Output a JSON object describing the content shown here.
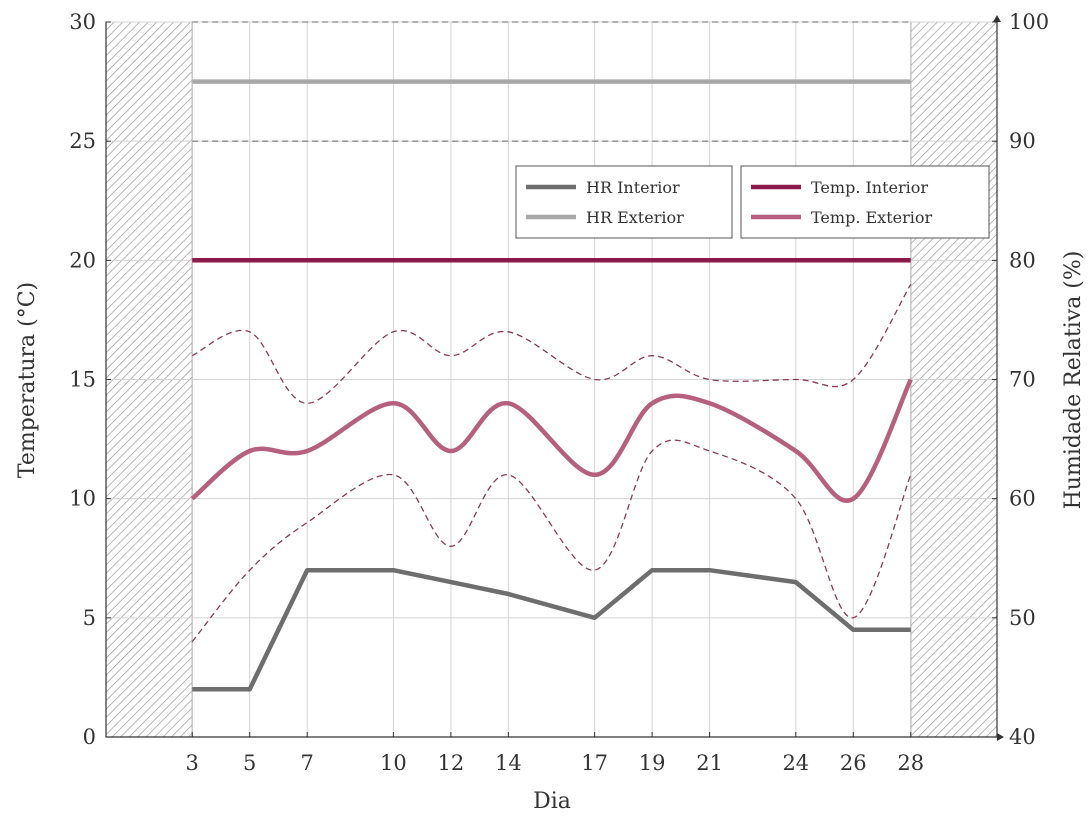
{
  "chart_data": {
    "type": "line",
    "xlabel": "Dia",
    "ylabel_left": "Temperatura (°C)",
    "ylabel_right": "Humidade Relativa (%)",
    "x": [
      3,
      5,
      7,
      10,
      12,
      14,
      17,
      19,
      21,
      24,
      26,
      28
    ],
    "xlim": [
      0,
      31
    ],
    "ylim_left": [
      0,
      30
    ],
    "ylim_right": [
      40,
      100
    ],
    "left_ticks": [
      "0",
      "5",
      "10",
      "15",
      "20",
      "25",
      "30"
    ],
    "right_ticks": [
      "40",
      "50",
      "60",
      "70",
      "80",
      "90",
      "100"
    ],
    "grid": true,
    "hatched_regions": [
      [
        0,
        3
      ],
      [
        28,
        31
      ]
    ],
    "series": [
      {
        "name": "HR Interior",
        "axis": "right",
        "color": "#6e6e6e",
        "values": [
          44,
          44,
          54,
          54,
          53,
          52,
          50,
          54,
          54,
          53,
          49,
          49
        ]
      },
      {
        "name": "HR Exterior",
        "axis": "right",
        "color": "#a8a8a8",
        "values": [
          95,
          95,
          95,
          95,
          95,
          95,
          95,
          95,
          95,
          95,
          95,
          95
        ]
      },
      {
        "name": "Temp. Interior",
        "axis": "left",
        "color": "#8b1a4a",
        "values": [
          20,
          20,
          20,
          20,
          20,
          20,
          20,
          20,
          20,
          20,
          20,
          20
        ]
      },
      {
        "name": "Temp. Exterior",
        "axis": "left",
        "color": "#b5607e",
        "values": [
          10,
          12,
          12,
          14,
          12,
          14,
          11,
          14,
          14,
          12,
          10,
          15
        ]
      }
    ],
    "bands": [
      {
        "of": "HR Exterior",
        "axis": "right",
        "color": "#888888",
        "upper": [
          100,
          100,
          100,
          100,
          100,
          100,
          100,
          100,
          100,
          100,
          100,
          100
        ],
        "lower": [
          90,
          90,
          90,
          90,
          90,
          90,
          90,
          90,
          90,
          90,
          90,
          90
        ]
      },
      {
        "of": "Temp. Exterior",
        "axis": "left",
        "color": "#8a3a5a",
        "upper": [
          16,
          17,
          14,
          17,
          16,
          17,
          15,
          16,
          15,
          15,
          15,
          19
        ],
        "lower": [
          4,
          7,
          9,
          11,
          8,
          11,
          7,
          12,
          12,
          10,
          5,
          11
        ]
      }
    ],
    "legend": [
      {
        "position": "upper-middle",
        "entries": [
          "HR Interior",
          "HR Exterior"
        ]
      },
      {
        "position": "upper-right",
        "entries": [
          "Temp. Interior",
          "Temp. Exterior"
        ]
      }
    ]
  }
}
